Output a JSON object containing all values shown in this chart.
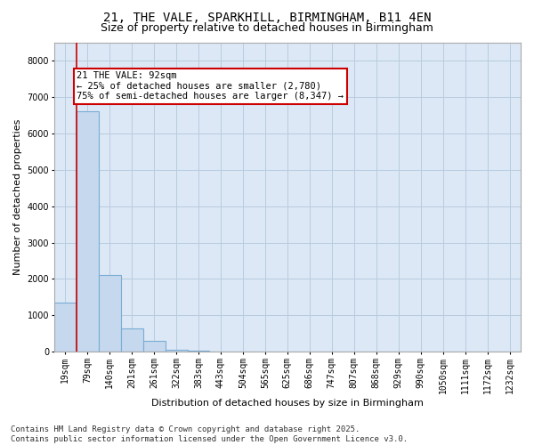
{
  "title_line1": "21, THE VALE, SPARKHILL, BIRMINGHAM, B11 4EN",
  "title_line2": "Size of property relative to detached houses in Birmingham",
  "xlabel": "Distribution of detached houses by size in Birmingham",
  "ylabel": "Number of detached properties",
  "categories": [
    "19sqm",
    "79sqm",
    "140sqm",
    "201sqm",
    "261sqm",
    "322sqm",
    "383sqm",
    "443sqm",
    "504sqm",
    "565sqm",
    "625sqm",
    "686sqm",
    "747sqm",
    "807sqm",
    "868sqm",
    "929sqm",
    "990sqm",
    "1050sqm",
    "1111sqm",
    "1172sqm",
    "1232sqm"
  ],
  "values": [
    1350,
    6600,
    2100,
    650,
    300,
    60,
    30,
    10,
    5,
    2,
    1,
    0,
    0,
    0,
    0,
    0,
    0,
    0,
    0,
    0,
    0
  ],
  "bar_color": "#c5d8ee",
  "bar_edge_color": "#7aadd4",
  "vline_x": 0.5,
  "vline_color": "#cc0000",
  "annotation_text": "21 THE VALE: 92sqm\n← 25% of detached houses are smaller (2,780)\n75% of semi-detached houses are larger (8,347) →",
  "annotation_box_color": "#ffffff",
  "annotation_box_edge": "#cc0000",
  "ylim": [
    0,
    8500
  ],
  "yticks": [
    0,
    1000,
    2000,
    3000,
    4000,
    5000,
    6000,
    7000,
    8000
  ],
  "background_color": "#ffffff",
  "plot_bg_color": "#dce8f5",
  "grid_color": "#b8ccdf",
  "footer_text": "Contains HM Land Registry data © Crown copyright and database right 2025.\nContains public sector information licensed under the Open Government Licence v3.0.",
  "title_fontsize": 10,
  "subtitle_fontsize": 9,
  "axis_label_fontsize": 8,
  "tick_fontsize": 7,
  "footer_fontsize": 6.5,
  "annotation_fontsize": 7.5
}
